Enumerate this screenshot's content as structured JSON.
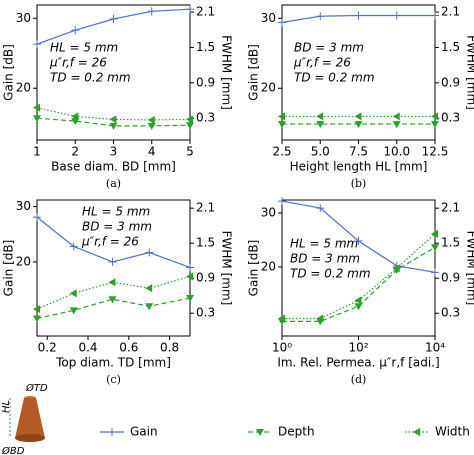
{
  "chart_data": [
    {
      "type": "line",
      "caption": "(a)",
      "xlabel": "Base diam. BD [mm]",
      "ylabel": "Gain [dB]",
      "y2label": "FWHM [mm]",
      "annotations": [
        "HL = 5 mm",
        "μ″r,f = 26",
        "TD = 0.2 mm"
      ],
      "x": [
        1,
        2,
        3,
        4,
        5
      ],
      "xlim": [
        1,
        5
      ],
      "xticks": [
        1,
        2,
        3,
        4,
        5
      ],
      "ylim": [
        12.6,
        31.9
      ],
      "yticks": [
        20,
        30
      ],
      "y2lim": [
        -0.07,
        2.22
      ],
      "y2ticks": [
        0.3,
        0.9,
        1.5,
        2.1
      ],
      "series": [
        {
          "name": "Gain",
          "color": "#4c72c4",
          "marker": "+",
          "linestyle": "solid",
          "values": [
            26.3,
            28.3,
            29.9,
            31.0,
            31.3
          ]
        },
        {
          "name": "Depth",
          "color": "#2ca02c",
          "marker": "v",
          "linestyle": "dashed",
          "axis": "y2",
          "values": [
            0.3,
            0.25,
            0.17,
            0.17,
            0.18
          ]
        },
        {
          "name": "Width",
          "color": "#2ca02c",
          "marker": "<",
          "linestyle": "dotted",
          "axis": "y2",
          "values": [
            0.48,
            0.33,
            0.28,
            0.27,
            0.28
          ]
        }
      ]
    },
    {
      "type": "line",
      "caption": "(b)",
      "xlabel": "Height length HL [mm]",
      "ylabel": "Gain [dB]",
      "y2label": "FWHM [mm]",
      "annotations": [
        "BD = 3 mm",
        "μ″r,f = 26",
        "TD = 0.2 mm"
      ],
      "x": [
        2.5,
        5,
        7.5,
        10,
        12.5
      ],
      "xlim": [
        2.5,
        12.5
      ],
      "xticks": [
        2.5,
        {
          "value": 5,
          "label": "5.0"
        },
        7.5,
        {
          "value": 10,
          "label": "10.0"
        },
        12.5
      ],
      "ylim": [
        12.6,
        31.9
      ],
      "yticks": [
        20,
        30
      ],
      "y2lim": [
        -0.07,
        2.22
      ],
      "y2ticks": [
        0.3,
        0.9,
        1.5,
        2.1
      ],
      "series": [
        {
          "name": "Gain",
          "color": "#4c72c4",
          "marker": "+",
          "linestyle": "solid",
          "values": [
            29.4,
            30.3,
            30.4,
            30.4,
            30.4
          ]
        },
        {
          "name": "Depth",
          "color": "#2ca02c",
          "marker": "v",
          "linestyle": "dashed",
          "axis": "y2",
          "values": [
            0.2,
            0.2,
            0.2,
            0.2,
            0.2
          ]
        },
        {
          "name": "Width",
          "color": "#2ca02c",
          "marker": "<",
          "linestyle": "dotted",
          "axis": "y2",
          "values": [
            0.33,
            0.33,
            0.33,
            0.33,
            0.33
          ]
        }
      ]
    },
    {
      "type": "line",
      "caption": "(c)",
      "xlabel": "Top diam. TD [mm]",
      "ylabel": "Gain [dB]",
      "y2label": "FWHM [mm]",
      "annotations": [
        "HL = 5 mm",
        "BD = 3 mm",
        "μ″r,f = 26"
      ],
      "x": [
        0.15,
        0.33,
        0.52,
        0.7,
        0.9
      ],
      "xlim": [
        0.15,
        0.9
      ],
      "xticks": [
        0.2,
        0.4,
        0.6,
        0.8
      ],
      "ylim": [
        6.6,
        31.2
      ],
      "yticks": [
        20,
        30
      ],
      "y2lim": [
        -0.09,
        2.24
      ],
      "y2ticks": [
        0.3,
        0.9,
        1.5,
        2.1
      ],
      "series": [
        {
          "name": "Gain",
          "color": "#4c72c4",
          "marker": "+",
          "linestyle": "solid",
          "values": [
            28.1,
            22.8,
            20.0,
            21.7,
            19.0
          ]
        },
        {
          "name": "Depth",
          "color": "#2ca02c",
          "marker": "v",
          "linestyle": "dashed",
          "axis": "y2",
          "values": [
            0.21,
            0.35,
            0.54,
            0.42,
            0.56
          ]
        },
        {
          "name": "Width",
          "color": "#2ca02c",
          "marker": "<",
          "linestyle": "dotted",
          "axis": "y2",
          "values": [
            0.37,
            0.64,
            0.83,
            0.73,
            0.93
          ]
        }
      ]
    },
    {
      "type": "line",
      "caption": "(d)",
      "xlabel": "Im. Rel. Permea. μ″r,f [adi.]",
      "ylabel": "Gain [dB]",
      "y2label": "FWHM [mm]",
      "annotations": [
        "HL = 5 mm",
        "BD = 3 mm",
        "TD = 0.2 mm"
      ],
      "xscale": "log",
      "x": [
        1,
        10,
        100,
        1000,
        10000
      ],
      "xlim": [
        1,
        10000
      ],
      "xticks": [
        {
          "value": 1,
          "label": "10⁰"
        },
        {
          "value": 100,
          "label": "10²"
        },
        {
          "value": 10000,
          "label": "10⁴"
        }
      ],
      "ylim": [
        7.2,
        32.4
      ],
      "yticks": [
        20,
        30
      ],
      "y2lim": [
        -0.09,
        2.24
      ],
      "y2ticks": [
        0.3,
        0.9,
        1.5,
        2.1
      ],
      "series": [
        {
          "name": "Gain",
          "color": "#4c72c4",
          "marker": "+",
          "linestyle": "solid",
          "values": [
            32.2,
            30.9,
            24.8,
            20.2,
            19.0
          ]
        },
        {
          "name": "Depth",
          "color": "#2ca02c",
          "marker": "v",
          "linestyle": "dashed",
          "axis": "y2",
          "values": [
            0.16,
            0.16,
            0.42,
            1.04,
            1.43
          ]
        },
        {
          "name": "Width",
          "color": "#2ca02c",
          "marker": "<",
          "linestyle": "dotted",
          "axis": "y2",
          "values": [
            0.21,
            0.21,
            0.52,
            1.07,
            1.66
          ]
        }
      ]
    }
  ],
  "icon": {
    "top": "ØTD",
    "height": "HL",
    "bottom": "ØBD"
  }
}
